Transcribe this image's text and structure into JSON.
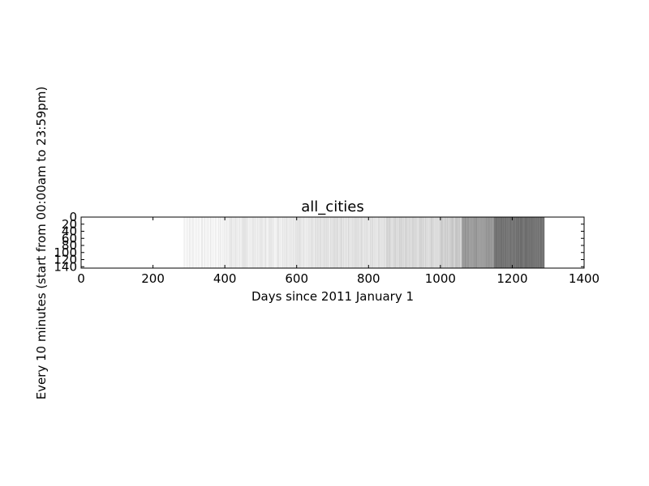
{
  "chart_data": {
    "type": "heatmap",
    "title": "all_cities",
    "xlabel": "Days since 2011 January 1",
    "ylabel": "Every 10 minutes (start from 00:00am to 23:59pm)",
    "xlim": [
      0,
      1400
    ],
    "ylim": [
      144,
      0
    ],
    "x_ticks": [
      0,
      200,
      400,
      600,
      800,
      1000,
      1200,
      1400
    ],
    "y_ticks": [
      0,
      20,
      40,
      60,
      80,
      100,
      120,
      140
    ],
    "colormap": "gray_r",
    "grid": false,
    "legend": "none",
    "intensity_profile": [
      {
        "day_start": 0,
        "day_end": 285,
        "level": 0.0
      },
      {
        "day_start": 285,
        "day_end": 400,
        "level": 0.05
      },
      {
        "day_start": 400,
        "day_end": 560,
        "level": 0.08
      },
      {
        "day_start": 560,
        "day_end": 700,
        "level": 0.1
      },
      {
        "day_start": 700,
        "day_end": 850,
        "level": 0.12
      },
      {
        "day_start": 850,
        "day_end": 1000,
        "level": 0.15
      },
      {
        "day_start": 1000,
        "day_end": 1060,
        "level": 0.2
      },
      {
        "day_start": 1060,
        "day_end": 1150,
        "level": 0.4
      },
      {
        "day_start": 1150,
        "day_end": 1290,
        "level": 0.55
      },
      {
        "day_start": 1290,
        "day_end": 1400,
        "level": 0.0
      }
    ]
  }
}
